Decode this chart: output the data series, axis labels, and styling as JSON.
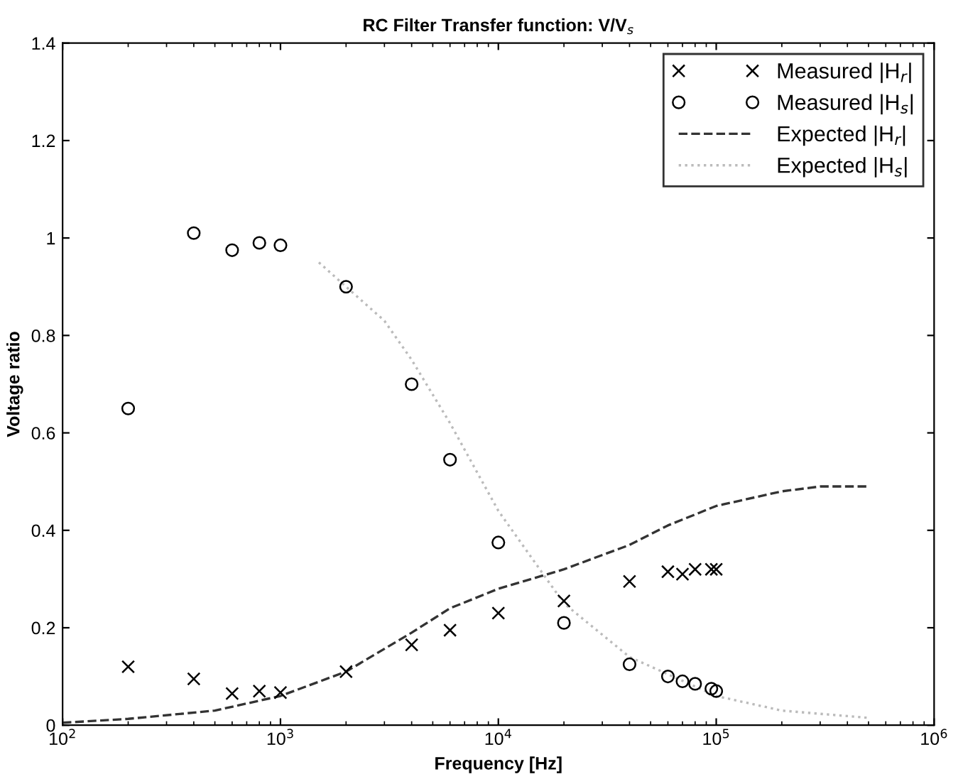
{
  "chart_data": {
    "type": "line",
    "title": "RC Filter Transfer function: V/V$_{s}$",
    "xlabel": "Frequency [Hz]",
    "ylabel": "Voltage ratio",
    "log": "x",
    "xlim": [
      100,
      1000000
    ],
    "ylim": [
      0,
      1.4
    ],
    "xticks": [
      {
        "value": 100,
        "label": "10$^{2}$"
      },
      {
        "value": 1000,
        "label": "10$^{3}$"
      },
      {
        "value": 10000,
        "label": "10$^{4}$"
      },
      {
        "value": 100000,
        "label": "10$^{5}$"
      },
      {
        "value": 1000000,
        "label": "10$^{6}$"
      }
    ],
    "yticks": [
      0,
      0.2,
      0.4,
      0.6,
      0.8,
      1,
      1.2,
      1.4
    ],
    "grid": false,
    "legend": "top right",
    "series": [
      {
        "name": "Measured |H$_{r}$|",
        "type": "scatter",
        "marker": "cross",
        "color": "#000000",
        "x": [
          200,
          400,
          600,
          800,
          1000,
          2000,
          4000,
          6000,
          10000,
          20000,
          40000,
          60000,
          70000,
          80000,
          95000,
          100000
        ],
        "values": [
          0.12,
          0.095,
          0.065,
          0.07,
          0.067,
          0.11,
          0.165,
          0.195,
          0.23,
          0.255,
          0.295,
          0.315,
          0.31,
          0.32,
          0.32,
          0.32
        ]
      },
      {
        "name": "Measured |H$_{s}$|",
        "type": "scatter",
        "marker": "circle",
        "color": "#000000",
        "x": [
          200,
          400,
          600,
          800,
          1000,
          2000,
          4000,
          6000,
          10000,
          20000,
          40000,
          60000,
          70000,
          80000,
          95000,
          100000
        ],
        "values": [
          0.65,
          1.01,
          0.975,
          0.99,
          0.985,
          0.9,
          0.7,
          0.545,
          0.375,
          0.21,
          0.125,
          0.1,
          0.09,
          0.085,
          0.075,
          0.07
        ]
      },
      {
        "name": "Expected |H$_{r}$|",
        "line_style": "dashed",
        "color": "#333333",
        "x": [
          100,
          200,
          500,
          1000,
          2000,
          4000,
          6000,
          10000,
          20000,
          40000,
          60000,
          100000,
          200000,
          300000,
          500000
        ],
        "values": [
          0.005,
          0.013,
          0.03,
          0.06,
          0.11,
          0.19,
          0.24,
          0.28,
          0.32,
          0.37,
          0.41,
          0.45,
          0.48,
          0.49,
          0.49
        ]
      },
      {
        "name": "Expected |H$_{s}$|",
        "line_style": "dotted",
        "color": "#bbbbbb",
        "x": [
          1500,
          2000,
          3000,
          4000,
          6000,
          10000,
          20000,
          40000,
          100000,
          200000,
          500000
        ],
        "values": [
          0.95,
          0.9,
          0.83,
          0.75,
          0.62,
          0.44,
          0.25,
          0.14,
          0.06,
          0.03,
          0.015
        ]
      }
    ]
  }
}
